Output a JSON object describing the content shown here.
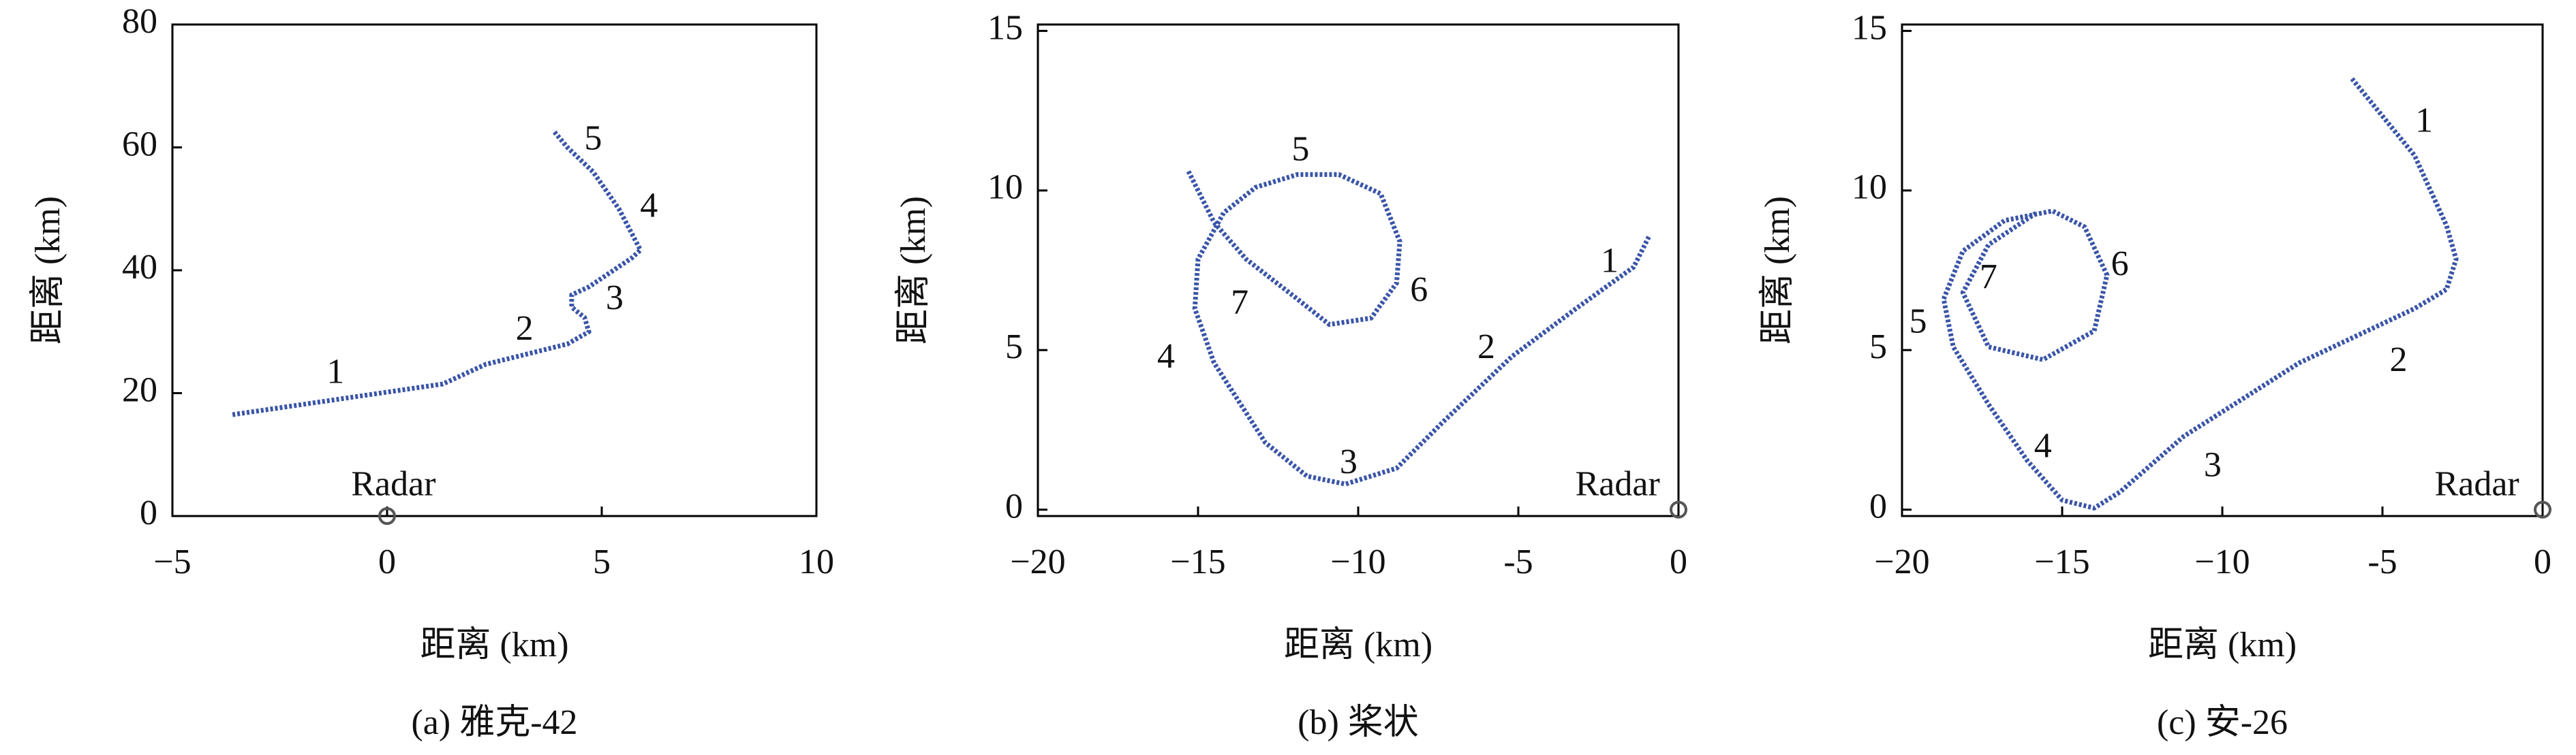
{
  "chart_data": [
    {
      "type": "line",
      "caption": "(a) 雅克-42",
      "xlabel": "距离 (km)",
      "ylabel": "距离 (km)",
      "xlim": [
        -5,
        10
      ],
      "ylim": [
        0,
        80
      ],
      "xticks": [
        {
          "value": -5,
          "label": "−5"
        },
        0,
        5,
        10
      ],
      "yticks": [
        0,
        20,
        40,
        60,
        80
      ],
      "x": [
        -3.6,
        1.3,
        2.3,
        4.2,
        4.7,
        4.6,
        4.3,
        4.3,
        4.7,
        5.7,
        5.9,
        5.4,
        4.8,
        4.2,
        3.9
      ],
      "series": [
        {
          "color": "#3a55a8",
          "values": [
            16.5,
            21.5,
            24.7,
            28,
            30,
            32.3,
            34,
            36,
            37.3,
            42,
            43.3,
            50,
            56,
            60,
            62.5
          ]
        }
      ],
      "annotations": [
        {
          "text": "1",
          "x": -1.2,
          "y": 23
        },
        {
          "text": "2",
          "x": 3.2,
          "y": 30
        },
        {
          "text": "3",
          "x": 5.3,
          "y": 35
        },
        {
          "text": "4",
          "x": 6.1,
          "y": 50
        },
        {
          "text": "5",
          "x": 4.8,
          "y": 61
        },
        {
          "text": "Radar",
          "x": 0.15,
          "y": 4.7
        }
      ],
      "radar": {
        "x": 0,
        "y": 0
      }
    },
    {
      "type": "line",
      "caption": "(b) 桨状",
      "xlabel": "距离 (km)",
      "ylabel": "距离 (km)",
      "xlim": [
        -20,
        0
      ],
      "ylim": [
        -0.2,
        15.2
      ],
      "xticks": [
        {
          "value": -20,
          "label": "−20"
        },
        {
          "value": -15,
          "label": "−15"
        },
        {
          "value": -10,
          "label": "−10"
        },
        {
          "value": -5,
          "label": "-5"
        },
        0
      ],
      "yticks": [
        0,
        5,
        10,
        15
      ],
      "x": [
        -15.3,
        -14.5,
        -13.5,
        -11.9,
        -10.9,
        -9.6,
        -8.8,
        -8.7,
        -9.3,
        -10.6,
        -11.9,
        -13.2,
        -14.2,
        -15.0,
        -15.1,
        -14.5,
        -12.9,
        -11.6,
        -10.4,
        -8.8,
        -7.3,
        -5.2,
        -3.2,
        -1.4,
        -0.9
      ],
      "series": [
        {
          "color": "#3a55a8",
          "values": [
            10.6,
            9.0,
            7.85,
            6.6,
            5.8,
            6.0,
            7.1,
            8.4,
            9.9,
            10.5,
            10.5,
            10.1,
            9.3,
            7.85,
            6.3,
            4.6,
            2.1,
            1.05,
            0.8,
            1.3,
            2.8,
            4.8,
            6.3,
            7.6,
            8.6
          ]
        }
      ],
      "annotations": [
        {
          "text": "1",
          "x": -2.15,
          "y": 7.7
        },
        {
          "text": "2",
          "x": -6,
          "y": 5
        },
        {
          "text": "3",
          "x": -10.3,
          "y": 1.4
        },
        {
          "text": "4",
          "x": -16,
          "y": 4.7
        },
        {
          "text": "5",
          "x": -11.8,
          "y": 11.2
        },
        {
          "text": "6",
          "x": -8.1,
          "y": 6.8
        },
        {
          "text": "7",
          "x": -13.7,
          "y": 6.4
        },
        {
          "text": "Radar",
          "x": -1.9,
          "y": 0.7
        }
      ],
      "radar": {
        "x": 0,
        "y": 0
      }
    },
    {
      "type": "line",
      "caption": "(c) 安-26",
      "xlabel": "距离 (km)",
      "ylabel": "距离 (km)",
      "xlim": [
        -20,
        0
      ],
      "ylim": [
        -0.2,
        15.2
      ],
      "xticks": [
        {
          "value": -20,
          "label": "−20"
        },
        {
          "value": -15,
          "label": "−15"
        },
        {
          "value": -10,
          "label": "−10"
        },
        {
          "value": -5,
          "label": "-5"
        },
        0
      ],
      "yticks": [
        0,
        5,
        10,
        15
      ],
      "x": [
        -5.95,
        -4.0,
        -3.0,
        -2.7,
        -3.0,
        -4.0,
        -7.6,
        -11.2,
        -13.2,
        -14.0,
        -15.0,
        -16.1,
        -17.3,
        -18.4,
        -18.7,
        -18.1,
        -16.8,
        -15.3,
        -14.3,
        -13.6,
        -14.0,
        -15.6,
        -17.3,
        -18.1,
        -17.3,
        -15.8
      ],
      "series": [
        {
          "color": "#3a55a8",
          "values": [
            13.5,
            11.1,
            8.9,
            7.85,
            6.9,
            6.3,
            4.6,
            2.3,
            0.55,
            0.05,
            0.3,
            1.55,
            3.3,
            5.1,
            6.6,
            8.1,
            9.06,
            9.36,
            8.86,
            7.35,
            5.6,
            4.7,
            5.1,
            6.8,
            8.3,
            9.3
          ]
        }
      ],
      "annotations": [
        {
          "text": "1",
          "x": -3.7,
          "y": 12.1
        },
        {
          "text": "2",
          "x": -4.5,
          "y": 4.6
        },
        {
          "text": "3",
          "x": -10.3,
          "y": 1.3
        },
        {
          "text": "4",
          "x": -15.6,
          "y": 1.9
        },
        {
          "text": "5",
          "x": -19.5,
          "y": 5.8
        },
        {
          "text": "6",
          "x": -13.2,
          "y": 7.6
        },
        {
          "text": "7",
          "x": -17.3,
          "y": 7.2
        },
        {
          "text": "Radar",
          "x": -2.05,
          "y": 0.7
        }
      ],
      "radar": {
        "x": 0,
        "y": 0
      }
    }
  ]
}
